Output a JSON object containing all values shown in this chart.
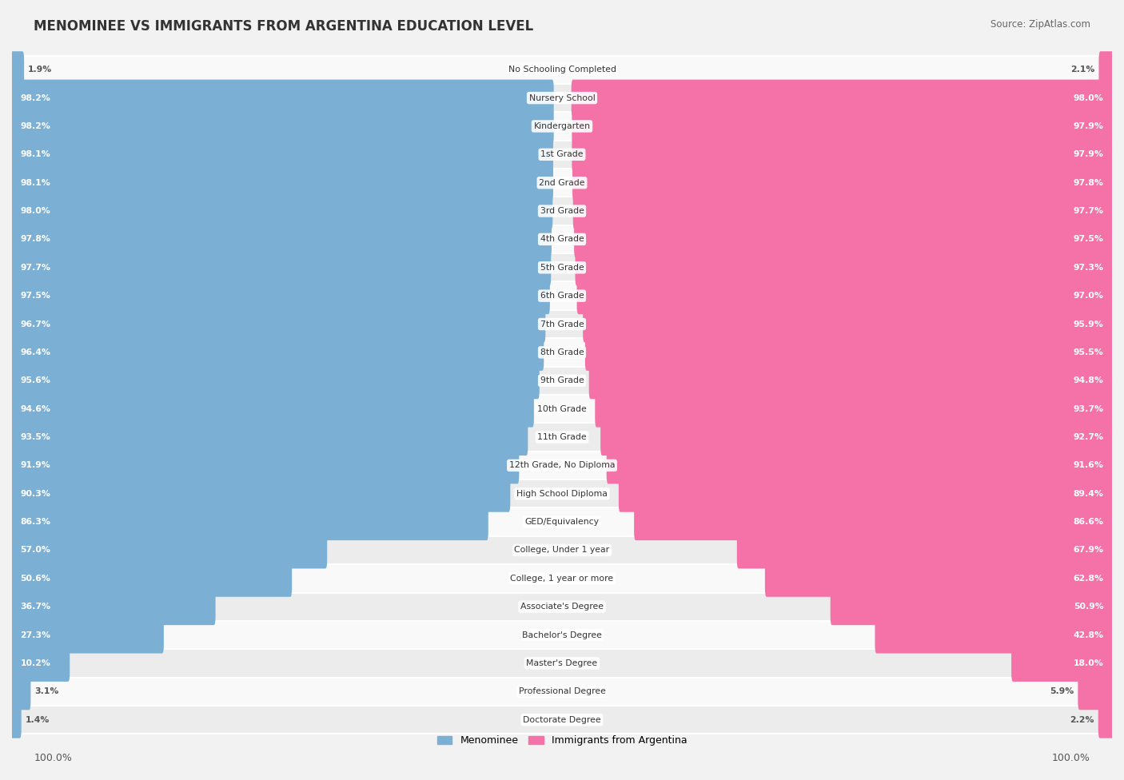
{
  "title": "MENOMINEE VS IMMIGRANTS FROM ARGENTINA EDUCATION LEVEL",
  "source": "Source: ZipAtlas.com",
  "categories": [
    "No Schooling Completed",
    "Nursery School",
    "Kindergarten",
    "1st Grade",
    "2nd Grade",
    "3rd Grade",
    "4th Grade",
    "5th Grade",
    "6th Grade",
    "7th Grade",
    "8th Grade",
    "9th Grade",
    "10th Grade",
    "11th Grade",
    "12th Grade, No Diploma",
    "High School Diploma",
    "GED/Equivalency",
    "College, Under 1 year",
    "College, 1 year or more",
    "Associate's Degree",
    "Bachelor's Degree",
    "Master's Degree",
    "Professional Degree",
    "Doctorate Degree"
  ],
  "menominee": [
    1.9,
    98.2,
    98.2,
    98.1,
    98.1,
    98.0,
    97.8,
    97.7,
    97.5,
    96.7,
    96.4,
    95.6,
    94.6,
    93.5,
    91.9,
    90.3,
    86.3,
    57.0,
    50.6,
    36.7,
    27.3,
    10.2,
    3.1,
    1.4
  ],
  "argentina": [
    2.1,
    98.0,
    97.9,
    97.9,
    97.8,
    97.7,
    97.5,
    97.3,
    97.0,
    95.9,
    95.5,
    94.8,
    93.7,
    92.7,
    91.6,
    89.4,
    86.6,
    67.9,
    62.8,
    50.9,
    42.8,
    18.0,
    5.9,
    2.2
  ],
  "bar_color_menominee": "#7BAFD4",
  "bar_color_argentina": "#F472A8",
  "bg_color": "#f2f2f2",
  "row_bg_light": "#f9f9f9",
  "row_bg_dark": "#ececec",
  "axis_label_left": "100.0%",
  "axis_label_right": "100.0%",
  "legend_menominee": "Menominee",
  "legend_argentina": "Immigrants from Argentina",
  "center_label_bg": "#ffffff",
  "value_text_color_on_bar": "#ffffff",
  "value_text_color_outside": "#555555"
}
